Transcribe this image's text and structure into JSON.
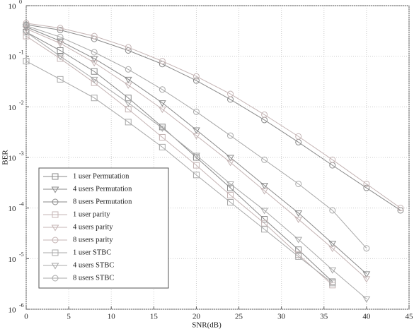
{
  "chart_data": {
    "type": "line",
    "log_y": true,
    "grid": true,
    "legend": "lower left",
    "x_label": "SNR(dB)",
    "y_label": "BER",
    "x": [
      0,
      4,
      8,
      12,
      16,
      20,
      24,
      28,
      32,
      36,
      40,
      44
    ],
    "xlim": [
      0,
      45
    ],
    "xticks": [
      0,
      5,
      10,
      15,
      20,
      25,
      30,
      35,
      40,
      45
    ],
    "ylim": [
      1e-06,
      1
    ],
    "yticks": [
      {
        "value": 1e-06,
        "label": "10",
        "exponent": "-6"
      },
      {
        "value": 1e-05,
        "label": "10",
        "exponent": "-5"
      },
      {
        "value": 0.0001,
        "label": "10",
        "exponent": "-4"
      },
      {
        "value": 0.001,
        "label": "10",
        "exponent": "-3"
      },
      {
        "value": 0.01,
        "label": "10",
        "exponent": "-2"
      },
      {
        "value": 0.1,
        "label": "10",
        "exponent": "-1"
      },
      {
        "value": 1,
        "label": "10",
        "exponent": "0"
      }
    ],
    "series": [
      {
        "name": "1 user Permutation",
        "color": "#8a8a8a",
        "marker": "square",
        "values": [
          0.3,
          0.13,
          0.05,
          0.015,
          0.004,
          0.001,
          0.00025,
          6e-05,
          1.5e-05,
          3.5e-06,
          null,
          null
        ]
      },
      {
        "name": "4 users Permutation",
        "color": "#8a8a8a",
        "marker": "triangle",
        "values": [
          0.38,
          0.2,
          0.09,
          0.035,
          0.012,
          0.0035,
          0.001,
          0.00028,
          8e-05,
          2e-05,
          5e-06,
          null
        ]
      },
      {
        "name": "8 users Permutation",
        "color": "#8a8a8a",
        "marker": "circle",
        "values": [
          0.42,
          0.33,
          0.22,
          0.13,
          0.07,
          0.033,
          0.014,
          0.0055,
          0.002,
          0.0007,
          0.00025,
          9e-05
        ]
      },
      {
        "name": "1 user parity",
        "color": "#c4b4b4",
        "marker": "square",
        "values": [
          0.25,
          0.09,
          0.03,
          0.009,
          0.0025,
          0.0007,
          0.00018,
          5e-05,
          1.2e-05,
          3e-06,
          null,
          null
        ]
      },
      {
        "name": "4 users parity",
        "color": "#c4b4b4",
        "marker": "triangle",
        "values": [
          0.35,
          0.18,
          0.075,
          0.027,
          0.009,
          0.0027,
          0.0008,
          0.00022,
          6e-05,
          1.6e-05,
          4e-06,
          null
        ]
      },
      {
        "name": "8 users parity",
        "color": "#c4b4b4",
        "marker": "circle",
        "values": [
          0.45,
          0.36,
          0.25,
          0.15,
          0.08,
          0.04,
          0.018,
          0.007,
          0.0026,
          0.0009,
          0.0003,
          0.0001
        ]
      },
      {
        "name": "1 user STBC",
        "color": "#a8a8a8",
        "marker": "square",
        "values": [
          0.08,
          0.035,
          0.015,
          0.005,
          0.0016,
          0.00045,
          0.00013,
          3.8e-05,
          1.1e-05,
          3.3e-06,
          null,
          null
        ]
      },
      {
        "name": "4 users STBC",
        "color": "#a8a8a8",
        "marker": "triangle",
        "values": [
          0.3,
          0.1,
          0.035,
          0.012,
          0.0038,
          0.0011,
          0.0003,
          9e-05,
          2.4e-05,
          6e-06,
          1.6e-06,
          null
        ]
      },
      {
        "name": "8 users STBC",
        "color": "#a8a8a8",
        "marker": "circle",
        "values": [
          0.4,
          0.24,
          0.12,
          0.055,
          0.022,
          0.008,
          0.0027,
          0.0009,
          0.0003,
          9e-05,
          1.6e-05,
          null
        ]
      }
    ]
  }
}
